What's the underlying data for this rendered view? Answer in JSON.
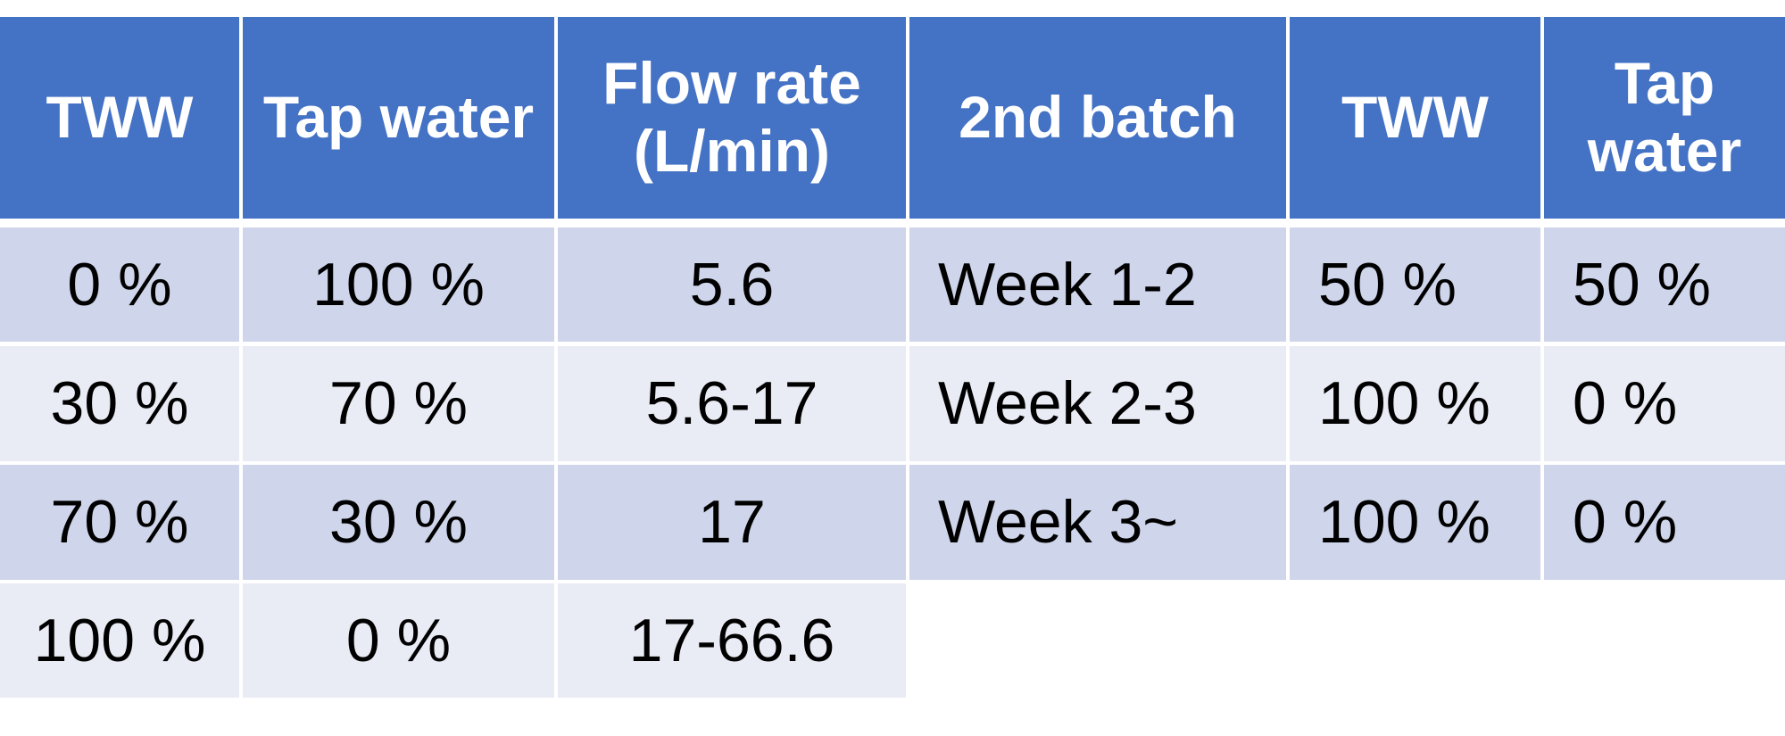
{
  "tables": [
    {
      "header": [
        "TWW",
        "Tap water",
        "Flow rate (L/min)"
      ],
      "rows": [
        [
          "0 %",
          "100 %",
          "5.6"
        ],
        [
          "30 %",
          "70 %",
          "5.6-17"
        ],
        [
          "70 %",
          "30 %",
          "17"
        ],
        [
          "100 %",
          "0 %",
          "17-66.6"
        ]
      ]
    },
    {
      "header": [
        "2nd batch",
        "TWW",
        "Tap water"
      ],
      "rows": [
        [
          "Week 1-2",
          "50 %",
          "50 %"
        ],
        [
          "Week 2-3",
          "100 %",
          "0 %"
        ],
        [
          "Week 3~",
          "100 %",
          "0 %"
        ]
      ]
    }
  ]
}
